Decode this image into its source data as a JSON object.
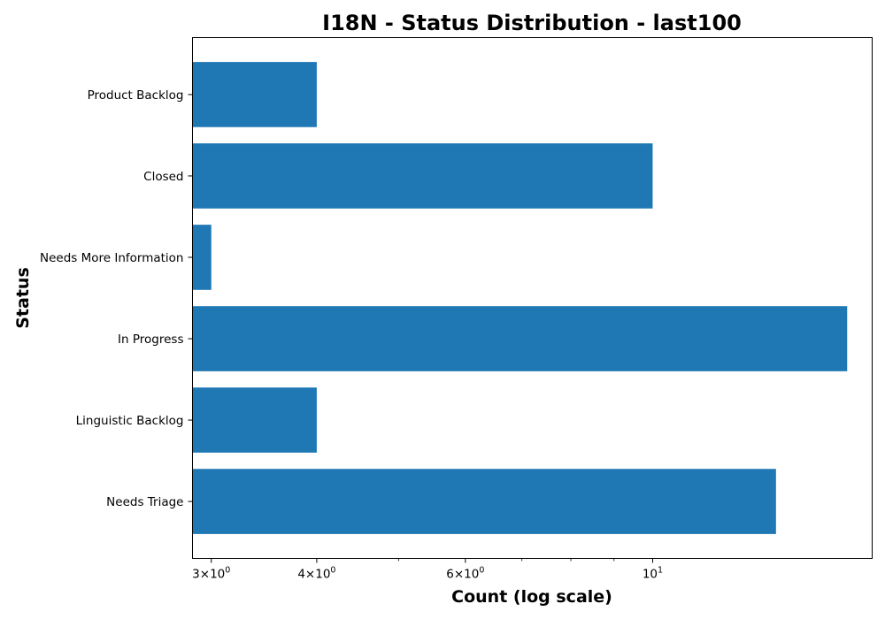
{
  "chart_data": {
    "type": "bar",
    "orientation": "horizontal",
    "title": "I18N - Status Distribution - last100",
    "xlabel": "Count (log scale)",
    "ylabel": "Status",
    "xscale": "log",
    "xlim": [
      2.85,
      18.2
    ],
    "grid": false,
    "legend": "none",
    "bar_color": "#1f77b4",
    "categories": [
      "Needs Triage",
      "Linguistic Backlog",
      "In Progress",
      "Needs More Information",
      "Closed",
      "Product Backlog"
    ],
    "values": [
      14,
      4,
      17,
      3,
      10,
      4
    ],
    "x_major_ticks": [
      {
        "value": 3,
        "mantissa": "3",
        "base": "10",
        "exp": "0"
      },
      {
        "value": 4,
        "mantissa": "4",
        "base": "10",
        "exp": "0"
      },
      {
        "value": 6,
        "mantissa": "6",
        "base": "10",
        "exp": "0"
      },
      {
        "value": 10,
        "mantissa": "",
        "base": "10",
        "exp": "1"
      }
    ],
    "x_minor_ticks": [
      5,
      7,
      8,
      9
    ]
  }
}
